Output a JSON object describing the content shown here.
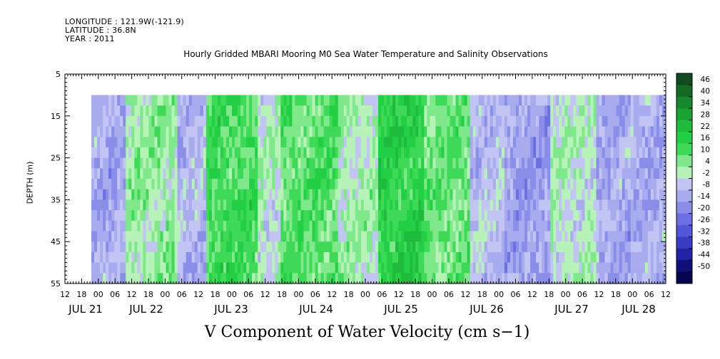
{
  "header": {
    "longitude": "LONGITUDE : 121.9W(-121.9)",
    "latitude": "LATITUDE : 36.8N",
    "year": "YEAR : 2011"
  },
  "chart_data": {
    "type": "heatmap",
    "title": "Hourly Gridded MBARI Mooring M0 Sea Water Temperature and Salinity Observations",
    "caption": "V Component of Water Velocity (cm s−1)",
    "ylabel": "DEPTH (m)",
    "yticks": [
      "5",
      "15",
      "25",
      "35",
      "45",
      "55"
    ],
    "ylim": [
      5,
      55
    ],
    "data_depth_range": [
      10,
      55
    ],
    "hour_ticks": [
      "12",
      "18",
      "00",
      "06",
      "12",
      "18",
      "00",
      "06",
      "12",
      "18",
      "00",
      "06",
      "12",
      "18",
      "00",
      "06",
      "12",
      "18",
      "00",
      "06",
      "12",
      "18",
      "00",
      "06",
      "12",
      "18",
      "00",
      "06",
      "12",
      "18",
      "00",
      "06",
      "12",
      "18",
      "00",
      "06",
      "12"
    ],
    "day_labels": [
      "JUL 21",
      "JUL 22",
      "JUL 23",
      "JUL 24",
      "JUL 25",
      "JUL 26",
      "JUL 27",
      "JUL 28"
    ],
    "colorbar": {
      "labels": [
        "46",
        "40",
        "34",
        "28",
        "22",
        "16",
        "10",
        "4",
        "-2",
        "-8",
        "-14",
        "-20",
        "-26",
        "-32",
        "-38",
        "-44",
        "-50"
      ],
      "colors": [
        "#114a1e",
        "#136a24",
        "#18882e",
        "#1aa235",
        "#1fbb3c",
        "#23cf44",
        "#3ed956",
        "#7fe88b",
        "#b7f3b8",
        "#c2c4f3",
        "#a8abee",
        "#8b8ee9",
        "#6d70e2",
        "#5356d8",
        "#3a3dc4",
        "#2224a3",
        "#0f1178",
        "#050550"
      ],
      "range": [
        -50,
        50
      ]
    },
    "series_bands": [
      {
        "day_fraction_start": 0.0,
        "day_fraction_end": 0.06,
        "value": -8
      },
      {
        "day_fraction_start": 0.06,
        "day_fraction_end": 0.15,
        "value": 6
      },
      {
        "day_fraction_start": 0.15,
        "day_fraction_end": 0.2,
        "value": -6
      },
      {
        "day_fraction_start": 0.2,
        "day_fraction_end": 0.29,
        "value": 14
      },
      {
        "day_fraction_start": 0.29,
        "day_fraction_end": 0.33,
        "value": 2
      },
      {
        "day_fraction_start": 0.33,
        "day_fraction_end": 0.43,
        "value": 12
      },
      {
        "day_fraction_start": 0.43,
        "day_fraction_end": 0.5,
        "value": 4
      },
      {
        "day_fraction_start": 0.5,
        "day_fraction_end": 0.58,
        "value": 18
      },
      {
        "day_fraction_start": 0.58,
        "day_fraction_end": 0.66,
        "value": 10
      },
      {
        "day_fraction_start": 0.66,
        "day_fraction_end": 0.72,
        "value": -4
      },
      {
        "day_fraction_start": 0.72,
        "day_fraction_end": 0.8,
        "value": -10
      },
      {
        "day_fraction_start": 0.8,
        "day_fraction_end": 0.88,
        "value": 2
      },
      {
        "day_fraction_start": 0.88,
        "day_fraction_end": 1.0,
        "value": -8
      }
    ]
  }
}
